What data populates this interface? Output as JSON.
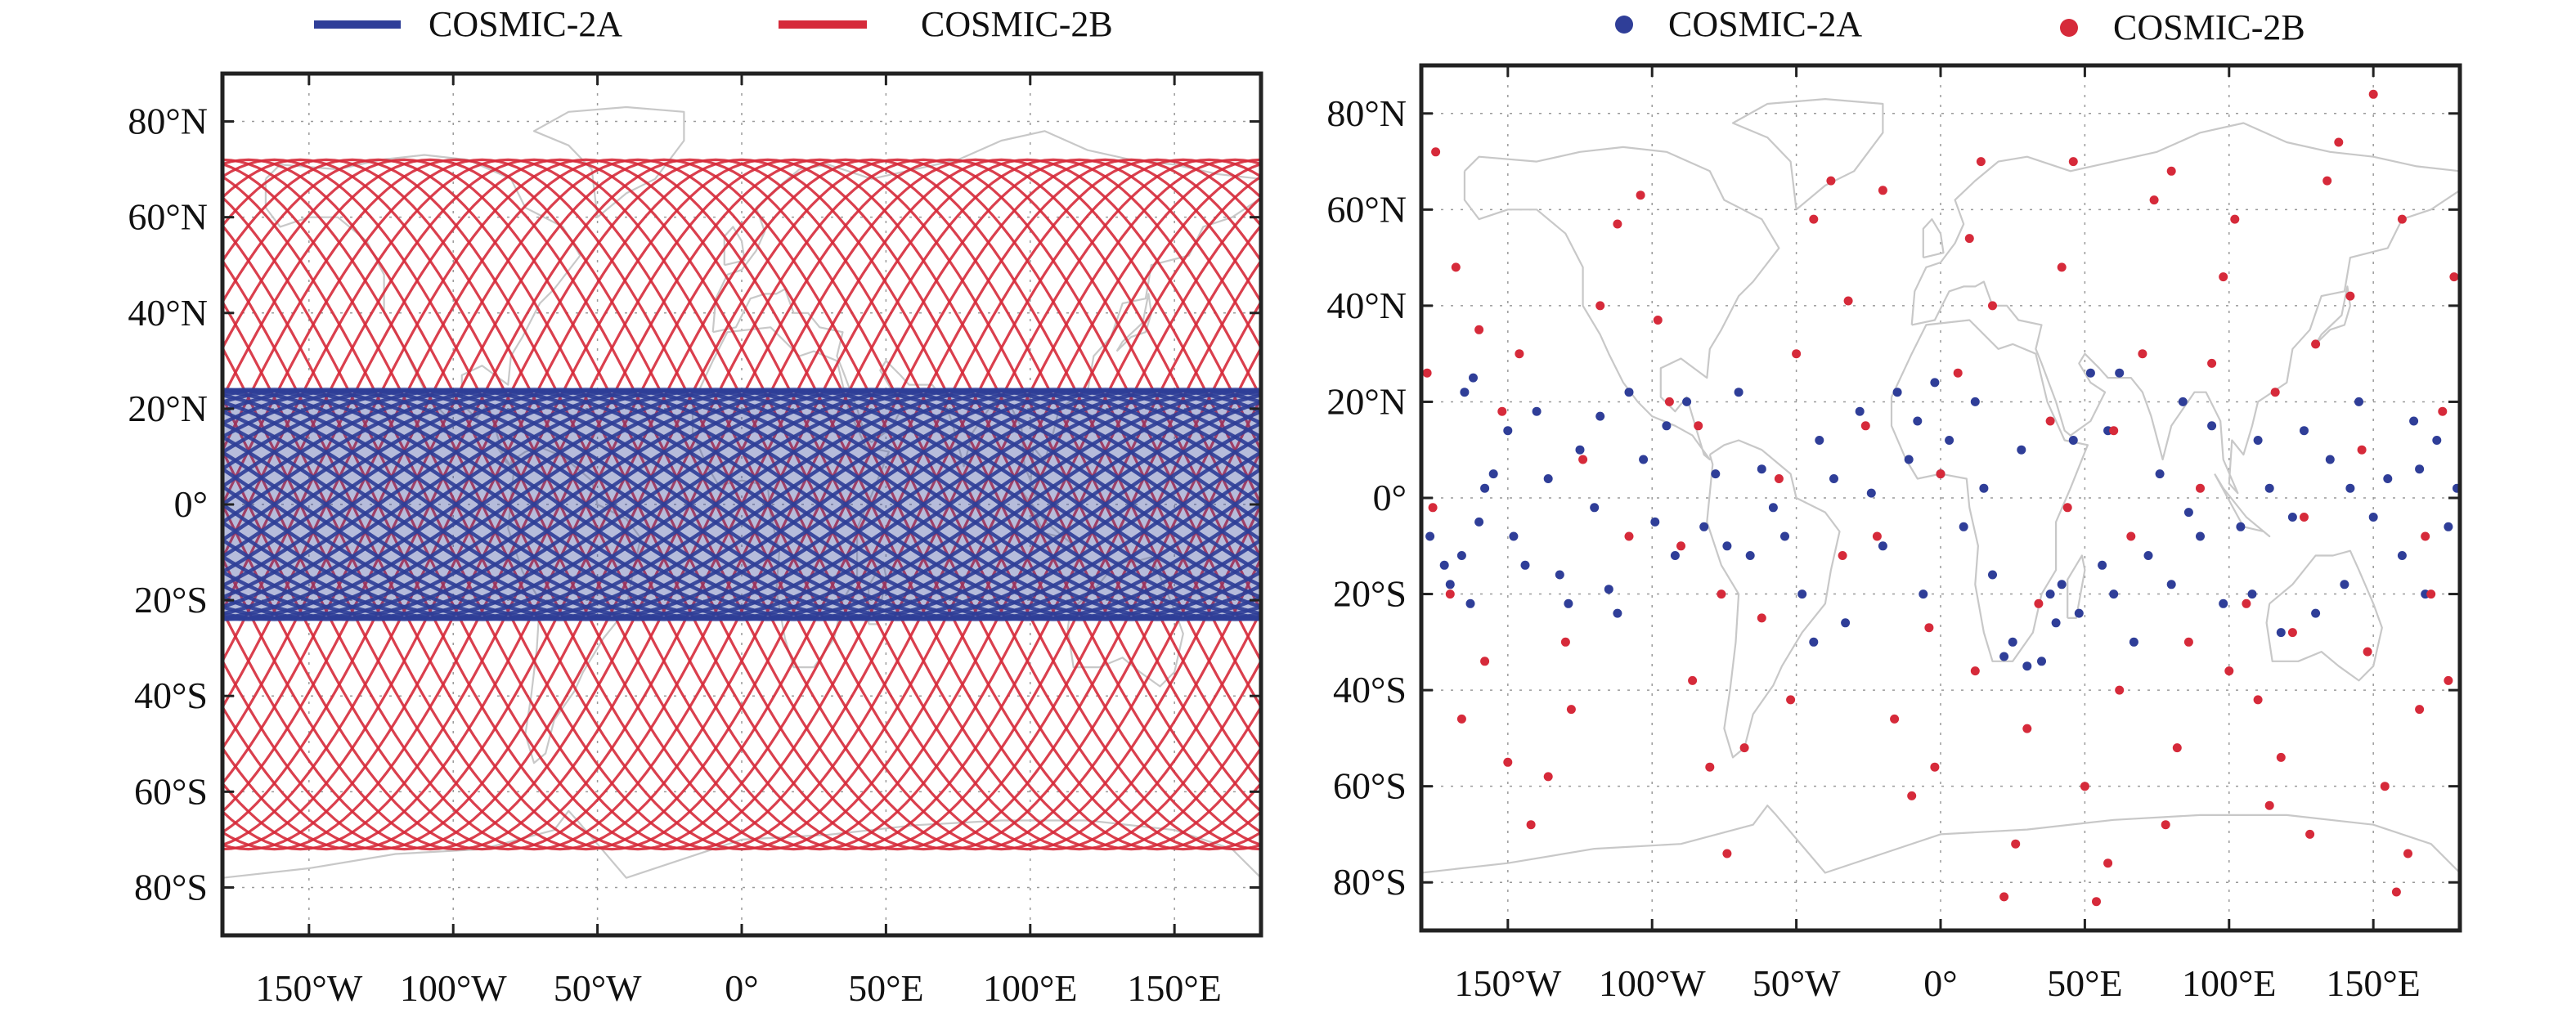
{
  "colors": {
    "cosmic_2a": "#2f3e98",
    "cosmic_2b": "#d62a3a",
    "land_outline": "#c8c8c8",
    "grid": "#9a9a9a",
    "frame": "#222222"
  },
  "chart_data": [
    {
      "type": "line",
      "grid": true,
      "legend_placement": "top",
      "legend_marker": "line",
      "xlim": [
        -180,
        180
      ],
      "ylim": [
        -90,
        90
      ],
      "x_ticks": [
        -150,
        -100,
        -50,
        0,
        50,
        100,
        150
      ],
      "x_tick_labels": [
        "150°W",
        "100°W",
        "50°W",
        "0°",
        "50°E",
        "100°E",
        "150°E"
      ],
      "y_ticks": [
        80,
        60,
        40,
        20,
        0,
        -20,
        -40,
        -60,
        -80
      ],
      "y_tick_labels": [
        "80°N",
        "60°N",
        "40°N",
        "20°N",
        "0°",
        "20°S",
        "40°S",
        "60°S",
        "80°S"
      ],
      "series": [
        {
          "name": "COSMIC-2A",
          "inclination_deg": 24,
          "ground_tracks": 40
        },
        {
          "name": "COSMIC-2B",
          "inclination_deg": 72,
          "ground_tracks": 40
        }
      ]
    },
    {
      "type": "scatter",
      "grid": true,
      "legend_placement": "top",
      "legend_marker": "dot",
      "xlim": [
        -180,
        180
      ],
      "ylim": [
        -90,
        90
      ],
      "x_ticks": [
        -150,
        -100,
        -50,
        0,
        50,
        100,
        150
      ],
      "x_tick_labels": [
        "150°W",
        "100°W",
        "50°W",
        "0°",
        "50°E",
        "100°E",
        "150°E"
      ],
      "y_ticks": [
        80,
        60,
        40,
        20,
        0,
        -20,
        -40,
        -60,
        -80
      ],
      "y_tick_labels": [
        "80°N",
        "60°N",
        "40°N",
        "20°N",
        "0°",
        "20°S",
        "40°S",
        "60°S",
        "80°S"
      ],
      "series": [
        {
          "name": "COSMIC-2A",
          "points": [
            [
              -165,
              22
            ],
            [
              -162,
              25
            ],
            [
              -158,
              2
            ],
            [
              -160,
              -5
            ],
            [
              -166,
              -12
            ],
            [
              -170,
              -18
            ],
            [
              -163,
              -22
            ],
            [
              -155,
              5
            ],
            [
              -150,
              14
            ],
            [
              -148,
              -8
            ],
            [
              -140,
              18
            ],
            [
              -136,
              4
            ],
            [
              -132,
              -16
            ],
            [
              -129,
              -22
            ],
            [
              -125,
              10
            ],
            [
              -120,
              -2
            ],
            [
              -115,
              -19
            ],
            [
              -108,
              22
            ],
            [
              -103,
              8
            ],
            [
              -99,
              -5
            ],
            [
              -95,
              15
            ],
            [
              -92,
              -12
            ],
            [
              -88,
              20
            ],
            [
              -82,
              -6
            ],
            [
              -78,
              5
            ],
            [
              -70,
              22
            ],
            [
              -66,
              -12
            ],
            [
              -58,
              -2
            ],
            [
              -54,
              -8
            ],
            [
              -48,
              -20
            ],
            [
              -42,
              12
            ],
            [
              -37,
              4
            ],
            [
              -33,
              -26
            ],
            [
              -28,
              18
            ],
            [
              -24,
              1
            ],
            [
              -20,
              -10
            ],
            [
              -15,
              22
            ],
            [
              -11,
              8
            ],
            [
              -6,
              -20
            ],
            [
              -2,
              24
            ],
            [
              3,
              12
            ],
            [
              8,
              -6
            ],
            [
              12,
              20
            ],
            [
              18,
              -16
            ],
            [
              22,
              -33
            ],
            [
              25,
              -30
            ],
            [
              30,
              -35
            ],
            [
              35,
              -34
            ],
            [
              38,
              -20
            ],
            [
              42,
              -18
            ],
            [
              46,
              12
            ],
            [
              48,
              -24
            ],
            [
              52,
              26
            ],
            [
              56,
              -14
            ],
            [
              60,
              -20
            ],
            [
              62,
              26
            ],
            [
              67,
              -30
            ],
            [
              72,
              -12
            ],
            [
              76,
              5
            ],
            [
              80,
              -18
            ],
            [
              84,
              20
            ],
            [
              90,
              -8
            ],
            [
              94,
              15
            ],
            [
              98,
              -22
            ],
            [
              104,
              -6
            ],
            [
              110,
              12
            ],
            [
              114,
              2
            ],
            [
              118,
              -28
            ],
            [
              122,
              -4
            ],
            [
              126,
              14
            ],
            [
              130,
              -24
            ],
            [
              135,
              8
            ],
            [
              140,
              -18
            ],
            [
              145,
              20
            ],
            [
              150,
              -4
            ],
            [
              155,
              4
            ],
            [
              160,
              -12
            ],
            [
              164,
              16
            ],
            [
              168,
              -20
            ],
            [
              172,
              12
            ],
            [
              176,
              -6
            ],
            [
              179,
              2
            ],
            [
              -177,
              -8
            ],
            [
              -172,
              -14
            ],
            [
              -144,
              -14
            ],
            [
              -118,
              17
            ],
            [
              -112,
              -24
            ],
            [
              -74,
              -10
            ],
            [
              -62,
              6
            ],
            [
              -44,
              -30
            ],
            [
              -8,
              16
            ],
            [
              0,
              5
            ],
            [
              15,
              2
            ],
            [
              28,
              10
            ],
            [
              40,
              -26
            ],
            [
              58,
              14
            ],
            [
              86,
              -3
            ],
            [
              108,
              -20
            ],
            [
              142,
              2
            ],
            [
              166,
              6
            ]
          ]
        },
        {
          "name": "COSMIC-2B",
          "points": [
            [
              -175,
              72
            ],
            [
              -168,
              48
            ],
            [
              -160,
              35
            ],
            [
              -152,
              18
            ],
            [
              -176,
              -2
            ],
            [
              -170,
              -20
            ],
            [
              -166,
              -46
            ],
            [
              -158,
              -34
            ],
            [
              -150,
              -55
            ],
            [
              -142,
              -68
            ],
            [
              -136,
              -58
            ],
            [
              -130,
              -30
            ],
            [
              -124,
              8
            ],
            [
              -118,
              40
            ],
            [
              -112,
              57
            ],
            [
              -104,
              63
            ],
            [
              -98,
              37
            ],
            [
              -94,
              20
            ],
            [
              -90,
              -10
            ],
            [
              -86,
              -38
            ],
            [
              -80,
              -56
            ],
            [
              -74,
              -74
            ],
            [
              -68,
              -52
            ],
            [
              -62,
              -25
            ],
            [
              -56,
              4
            ],
            [
              -50,
              30
            ],
            [
              -44,
              58
            ],
            [
              -38,
              66
            ],
            [
              -32,
              41
            ],
            [
              -26,
              15
            ],
            [
              -22,
              -8
            ],
            [
              -16,
              -46
            ],
            [
              -10,
              -62
            ],
            [
              -4,
              -27
            ],
            [
              0,
              5
            ],
            [
              6,
              26
            ],
            [
              10,
              54
            ],
            [
              14,
              70
            ],
            [
              18,
              40
            ],
            [
              22,
              -83
            ],
            [
              26,
              -72
            ],
            [
              30,
              -48
            ],
            [
              34,
              -22
            ],
            [
              38,
              16
            ],
            [
              42,
              48
            ],
            [
              46,
              70
            ],
            [
              50,
              -60
            ],
            [
              54,
              -84
            ],
            [
              58,
              -76
            ],
            [
              62,
              -40
            ],
            [
              66,
              -8
            ],
            [
              70,
              30
            ],
            [
              74,
              62
            ],
            [
              78,
              -68
            ],
            [
              82,
              -52
            ],
            [
              86,
              -30
            ],
            [
              90,
              2
            ],
            [
              94,
              28
            ],
            [
              98,
              46
            ],
            [
              102,
              58
            ],
            [
              106,
              -22
            ],
            [
              110,
              -42
            ],
            [
              114,
              -64
            ],
            [
              118,
              -54
            ],
            [
              122,
              -28
            ],
            [
              126,
              -4
            ],
            [
              130,
              32
            ],
            [
              134,
              66
            ],
            [
              138,
              74
            ],
            [
              142,
              42
            ],
            [
              146,
              10
            ],
            [
              150,
              84
            ],
            [
              154,
              -60
            ],
            [
              158,
              -82
            ],
            [
              162,
              -74
            ],
            [
              166,
              -44
            ],
            [
              170,
              -20
            ],
            [
              174,
              18
            ],
            [
              178,
              46
            ],
            [
              -178,
              26
            ],
            [
              -146,
              30
            ],
            [
              -128,
              -44
            ],
            [
              -108,
              -8
            ],
            [
              -84,
              15
            ],
            [
              -76,
              -20
            ],
            [
              -52,
              -42
            ],
            [
              -34,
              -12
            ],
            [
              -20,
              64
            ],
            [
              -2,
              -56
            ],
            [
              12,
              -36
            ],
            [
              44,
              -2
            ],
            [
              60,
              14
            ],
            [
              80,
              68
            ],
            [
              100,
              -36
            ],
            [
              116,
              22
            ],
            [
              128,
              -70
            ],
            [
              148,
              -32
            ],
            [
              160,
              58
            ],
            [
              168,
              -8
            ],
            [
              176,
              -38
            ]
          ]
        }
      ]
    }
  ]
}
